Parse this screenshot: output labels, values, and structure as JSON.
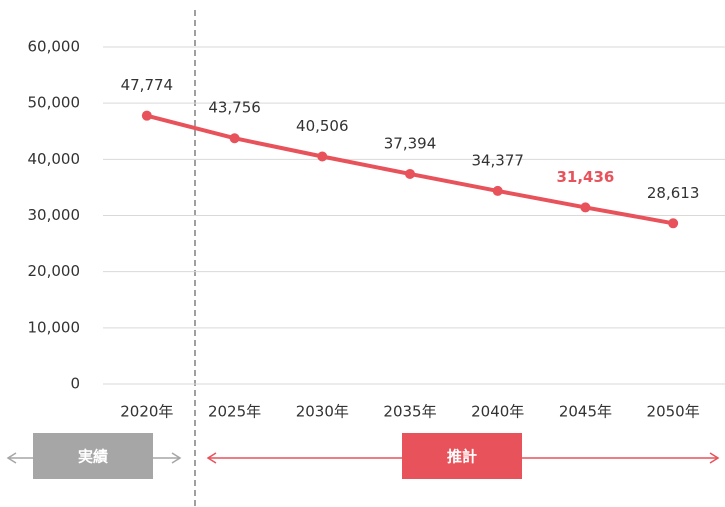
{
  "chart_data": {
    "type": "line",
    "categories": [
      "2020年",
      "2025年",
      "2030年",
      "2035年",
      "2040年",
      "2045年",
      "2050年"
    ],
    "series": [
      {
        "color": "#e8525a",
        "values": [
          47774,
          43756,
          40506,
          37394,
          34377,
          31436,
          28613
        ],
        "value_labels": [
          "47,774",
          "43,756",
          "40,506",
          "37,394",
          "34,377",
          "31,436",
          "28,613"
        ]
      }
    ],
    "ylim": [
      0,
      60000
    ],
    "yticks": [
      0,
      {
        "value": 10000,
        "label": "10,000"
      },
      {
        "value": 20000,
        "label": "20,000"
      },
      {
        "value": 30000,
        "label": "30,000"
      },
      {
        "value": 40000,
        "label": "40,000"
      },
      {
        "value": 50000,
        "label": "50,000"
      },
      {
        "value": 60000,
        "label": "60,000"
      }
    ],
    "grid": true,
    "highlight": {
      "index": 5,
      "color": "#e8525a"
    },
    "annotations": [
      {
        "text": "実績",
        "color": "#a6a6a6"
      },
      {
        "text": "推計",
        "color": "#e8525a"
      }
    ]
  }
}
